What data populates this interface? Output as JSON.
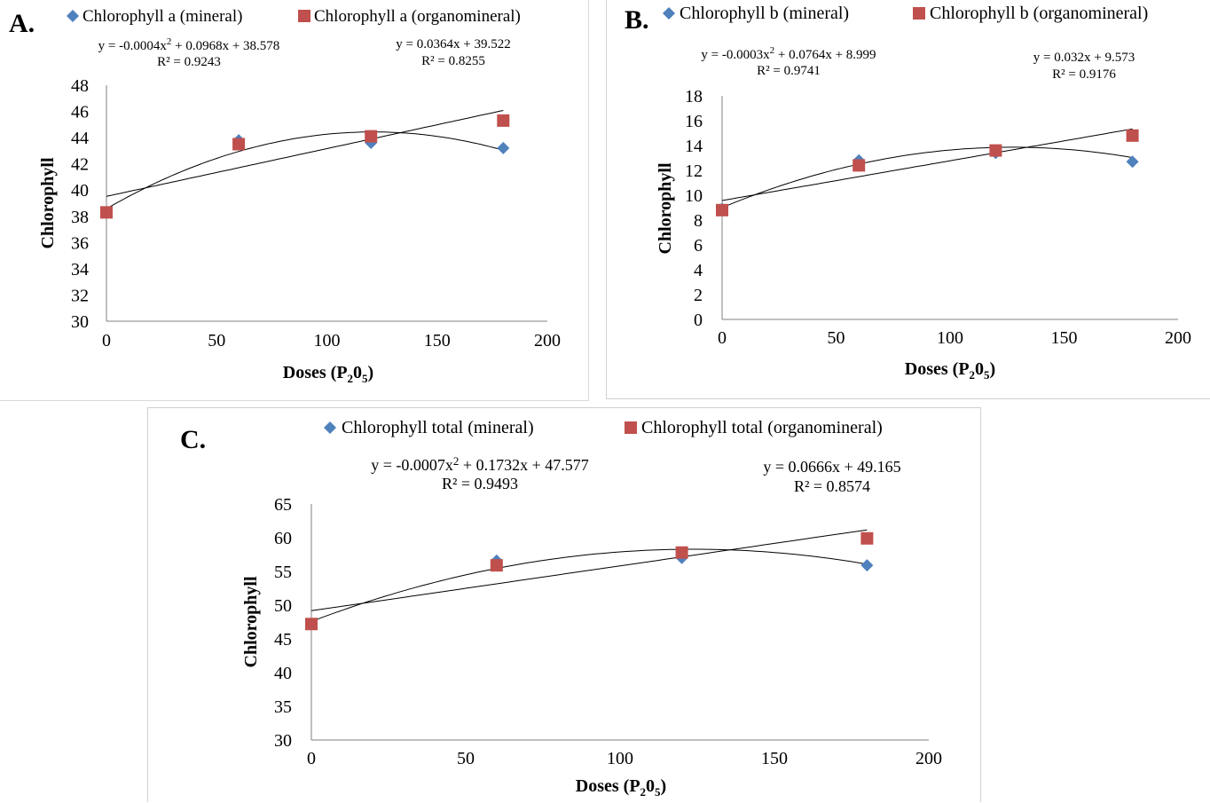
{
  "colors": {
    "mineral": "#4f81bd",
    "organomineral": "#c0504d",
    "axis": "#808080",
    "trend": "#000000"
  },
  "chart_data": [
    {
      "panel_label": "A.",
      "type": "scatter",
      "xlabel": "Doses (P",
      "xlabel_sub1": "2",
      "xlabel_mid": "0",
      "xlabel_sub2": "5",
      "xlabel_end": ")",
      "ylabel": "Chlorophyll",
      "xlim": [
        0,
        200
      ],
      "ylim": [
        30,
        48
      ],
      "xticks": [
        "0",
        "50",
        "100",
        "150",
        "200"
      ],
      "yticks": [
        "30",
        "32",
        "34",
        "36",
        "38",
        "40",
        "42",
        "44",
        "46",
        "48"
      ],
      "legend_position": "top",
      "series": [
        {
          "name": "Chlorophyll a (mineral)",
          "marker": "diamond",
          "x": [
            0,
            60,
            120,
            180
          ],
          "y": [
            38.3,
            43.8,
            43.6,
            43.2
          ],
          "trend": {
            "kind": "poly2",
            "a": -0.0004,
            "b": 0.0968,
            "c": 38.578
          },
          "eq_prefix": "y = -0.0004x",
          "eq_sup": "2",
          "eq_suffix": " + 0.0968x + 38.578",
          "r2": "R² = 0.9243"
        },
        {
          "name": "Chlorophyll a (organomineral)",
          "marker": "square",
          "x": [
            0,
            60,
            120,
            180
          ],
          "y": [
            38.3,
            43.5,
            44.1,
            45.3
          ],
          "trend": {
            "kind": "linear",
            "b": 0.0364,
            "c": 39.522
          },
          "eq_prefix": "y = 0.0364x  + 39.522",
          "eq_sup": "",
          "eq_suffix": "",
          "r2": "R² = 0.8255"
        }
      ]
    },
    {
      "panel_label": "B.",
      "type": "scatter",
      "xlabel": "Doses (P",
      "xlabel_sub1": "2",
      "xlabel_mid": "0",
      "xlabel_sub2": "5",
      "xlabel_end": ")",
      "ylabel": "Chlorophyll",
      "xlim": [
        0,
        200
      ],
      "ylim": [
        0,
        18
      ],
      "xticks": [
        "0",
        "50",
        "100",
        "150",
        "200"
      ],
      "yticks": [
        "0",
        "2",
        "4",
        "6",
        "8",
        "10",
        "12",
        "14",
        "16",
        "18"
      ],
      "legend_position": "top",
      "series": [
        {
          "name": "Chlorophyll b (mineral)",
          "marker": "diamond",
          "x": [
            0,
            60,
            120,
            180
          ],
          "y": [
            8.9,
            12.8,
            13.4,
            12.7
          ],
          "trend": {
            "kind": "poly2",
            "a": -0.0003,
            "b": 0.0764,
            "c": 8.999
          },
          "eq_prefix": "y = -0.0003x",
          "eq_sup": "2",
          "eq_suffix": " + 0.0764x  + 8.999",
          "r2": "R² = 0.9741"
        },
        {
          "name": "Chlorophyll b (organomineral)",
          "marker": "square",
          "x": [
            0,
            60,
            120,
            180
          ],
          "y": [
            8.8,
            12.4,
            13.6,
            14.8
          ],
          "trend": {
            "kind": "linear",
            "b": 0.032,
            "c": 9.573
          },
          "eq_prefix": "y = 0.032x  + 9.573",
          "eq_sup": "",
          "eq_suffix": "",
          "r2": "R² = 0.9176"
        }
      ]
    },
    {
      "panel_label": "C.",
      "type": "scatter",
      "xlabel": "Doses (P",
      "xlabel_sub1": "2",
      "xlabel_mid": "0",
      "xlabel_sub2": "5",
      "xlabel_end": ")",
      "ylabel": "Chlorophyll",
      "xlim": [
        0,
        200
      ],
      "ylim": [
        30,
        65
      ],
      "xticks": [
        "0",
        "50",
        "100",
        "150",
        "200"
      ],
      "yticks": [
        "30",
        "35",
        "40",
        "45",
        "50",
        "55",
        "60",
        "65"
      ],
      "legend_position": "top",
      "series": [
        {
          "name": "Chlorophyll total (mineral)",
          "marker": "diamond",
          "x": [
            0,
            60,
            120,
            180
          ],
          "y": [
            47.2,
            56.6,
            57.0,
            55.9
          ],
          "trend": {
            "kind": "poly2",
            "a": -0.0007,
            "b": 0.1732,
            "c": 47.577
          },
          "eq_prefix": "y = -0.0007x",
          "eq_sup": "2",
          "eq_suffix": " + 0.1732x + 47.577",
          "r2": "R² = 0.9493"
        },
        {
          "name": "Chlorophyll total (organomineral)",
          "marker": "square",
          "x": [
            0,
            60,
            120,
            180
          ],
          "y": [
            47.2,
            55.9,
            57.8,
            59.9
          ],
          "trend": {
            "kind": "linear",
            "b": 0.0666,
            "c": 49.165
          },
          "eq_prefix": "y = 0.0666x + 49.165",
          "eq_sup": "",
          "eq_suffix": "",
          "r2": "R² = 0.8574"
        }
      ]
    }
  ]
}
